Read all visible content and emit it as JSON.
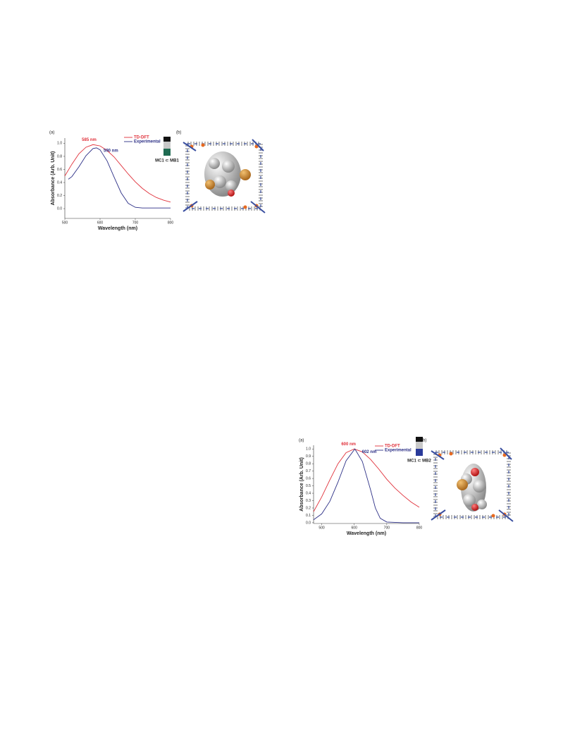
{
  "chart_data": [
    {
      "type": "line",
      "panel_labels": [
        "(a)",
        "(b)"
      ],
      "x_label": "Wavelength (nm)",
      "y_label": "Absorbance (Arb. Unit)",
      "xlim": [
        500,
        800
      ],
      "xticks": [
        500,
        600,
        700,
        800
      ],
      "ylim": [
        -0.15,
        1.08
      ],
      "yticks": [
        {
          "value": 0,
          "label": "0.0"
        },
        0.2,
        0.4,
        0.6,
        0.8,
        {
          "value": 1,
          "label": "1.0"
        }
      ],
      "legend": "top-right",
      "vial_label": "MC1 ⊂ MB1",
      "vial_color": "#1f6b52",
      "series": [
        {
          "name": "TD-DFT",
          "color": "#e0303a",
          "peak_label": "585 nm",
          "peak_x": 585,
          "x": [
            500,
            520,
            540,
            560,
            580,
            600,
            620,
            640,
            660,
            680,
            700,
            720,
            740,
            760,
            780,
            800
          ],
          "values": [
            0.5,
            0.68,
            0.84,
            0.94,
            0.98,
            0.96,
            0.89,
            0.79,
            0.66,
            0.53,
            0.41,
            0.31,
            0.23,
            0.17,
            0.13,
            0.1
          ]
        },
        {
          "name": "Experimental",
          "color": "#2c2f86",
          "peak_label": "590 nm",
          "peak_x": 590,
          "x": [
            510,
            520,
            540,
            560,
            580,
            590,
            600,
            620,
            640,
            660,
            680,
            700,
            720,
            760,
            800
          ],
          "values": [
            0.45,
            0.49,
            0.64,
            0.81,
            0.92,
            0.93,
            0.9,
            0.73,
            0.48,
            0.24,
            0.08,
            0.02,
            0.01,
            0.01,
            0.01
          ]
        }
      ]
    },
    {
      "type": "line",
      "panel_labels": [
        "(a)",
        "(b)"
      ],
      "x_label": "Wavelength (nm)",
      "y_label": "Absorbance (Arb. Unit)",
      "xlim": [
        475,
        800
      ],
      "xticks": [
        500,
        600,
        700,
        800
      ],
      "ylim": [
        -0.01,
        1.05
      ],
      "yticks": [
        {
          "value": 0,
          "label": "0.0"
        },
        0.1,
        0.2,
        0.3,
        0.4,
        0.5,
        0.6,
        0.7,
        0.8,
        0.9,
        {
          "value": 1,
          "label": "1.0"
        }
      ],
      "legend": "top-right",
      "vial_label": "MC1 ⊂ MB2",
      "vial_color": "#2a3a9a",
      "series": [
        {
          "name": "TD-DFT",
          "color": "#e0303a",
          "peak_label": "600 nm",
          "peak_x": 600,
          "x": [
            475,
            500,
            525,
            550,
            575,
            600,
            625,
            650,
            675,
            700,
            725,
            750,
            775,
            800
          ],
          "values": [
            0.15,
            0.35,
            0.58,
            0.8,
            0.95,
            1.0,
            0.96,
            0.86,
            0.73,
            0.59,
            0.47,
            0.37,
            0.28,
            0.21
          ]
        },
        {
          "name": "Experimental",
          "color": "#2c2f86",
          "peak_label": "602 nm",
          "peak_x": 602,
          "x": [
            475,
            500,
            525,
            550,
            575,
            602,
            625,
            650,
            665,
            680,
            700,
            750,
            800
          ],
          "values": [
            0.04,
            0.12,
            0.29,
            0.55,
            0.84,
            1.0,
            0.83,
            0.45,
            0.2,
            0.06,
            0.01,
            0,
            0
          ]
        }
      ]
    }
  ]
}
